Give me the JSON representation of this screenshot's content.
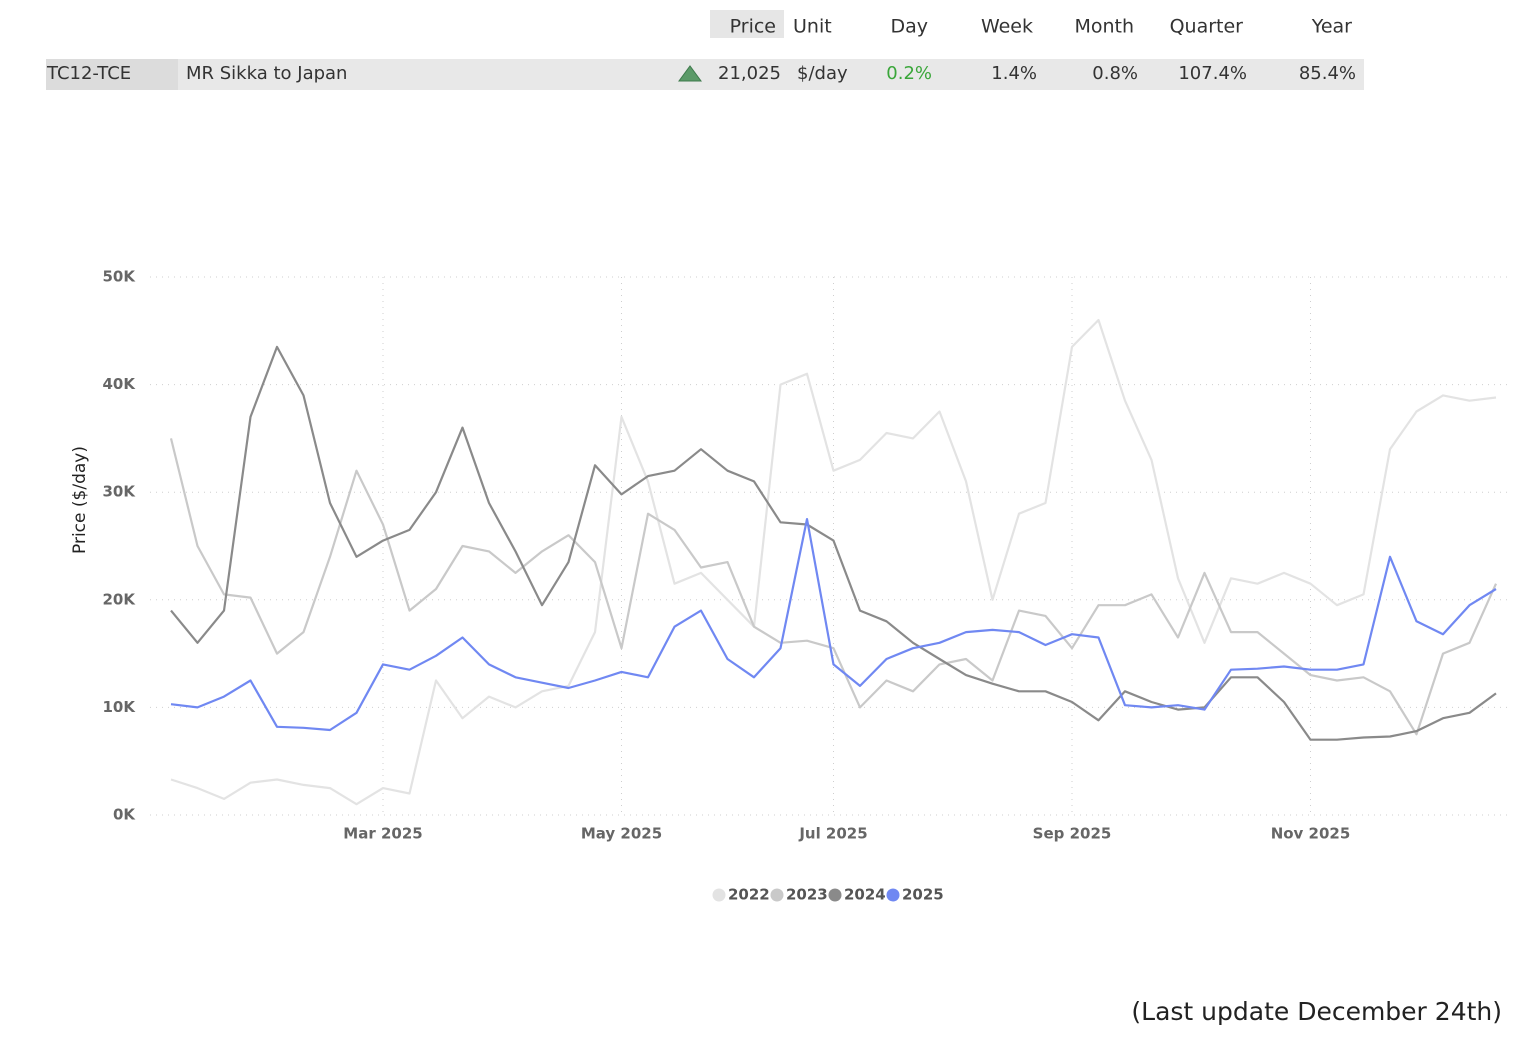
{
  "table": {
    "headers": [
      "Price",
      "Unit",
      "Day",
      "Week",
      "Month",
      "Quarter",
      "Year"
    ],
    "row": {
      "code": "TC12-TCE",
      "route": "MR Sikka to Japan",
      "price": "21,025",
      "unit": "$/day",
      "day": "0.2%",
      "week": "1.4%",
      "month": "0.8%",
      "quarter": "107.4%",
      "year": "85.4%"
    }
  },
  "chart_data": {
    "type": "line",
    "y_label": "Price ($/day)",
    "categories": [
      null,
      null,
      null,
      null,
      null,
      null,
      null,
      null,
      "Mar 2025",
      null,
      null,
      null,
      null,
      null,
      null,
      null,
      null,
      "May 2025",
      null,
      null,
      null,
      null,
      null,
      null,
      null,
      "Jul 2025",
      null,
      null,
      null,
      null,
      null,
      null,
      null,
      null,
      "Sep 2025",
      null,
      null,
      null,
      null,
      null,
      null,
      null,
      null,
      "Nov 2025",
      null,
      null,
      null,
      null,
      null,
      null,
      null
    ],
    "ylim": [
      0,
      50000
    ],
    "yticks": [
      {
        "value": 0,
        "label": "0K"
      },
      {
        "value": 10000,
        "label": "10K"
      },
      {
        "value": 20000,
        "label": "20K"
      },
      {
        "value": 30000,
        "label": "30K"
      },
      {
        "value": 40000,
        "label": "40K"
      },
      {
        "value": 50000,
        "label": "50K"
      }
    ],
    "grid": true,
    "legend": "bottom",
    "series": [
      {
        "name": "2022",
        "color": "#e3e3e3",
        "values": [
          3300,
          2500,
          1500,
          3000,
          3300,
          2800,
          2500,
          1000,
          2500,
          2000,
          12500,
          9000,
          11000,
          10000,
          11500,
          12000,
          17000,
          37000,
          31000,
          21500,
          22500,
          20000,
          17500,
          40000,
          41000,
          32000,
          33000,
          35500,
          35000,
          37500,
          31000,
          20000,
          28000,
          29000,
          43500,
          46000,
          38500,
          33000,
          22000,
          16000,
          22000,
          21500,
          22500,
          21500,
          19500,
          20500,
          34000,
          37500,
          39000,
          38500,
          38800
        ]
      },
      {
        "name": "2023",
        "color": "#c9c9c9",
        "values": [
          35000,
          25000,
          20500,
          20200,
          15000,
          17000,
          24000,
          32000,
          27000,
          19000,
          21000,
          25000,
          24500,
          22500,
          24500,
          26000,
          23500,
          15500,
          28000,
          26500,
          23000,
          23500,
          17500,
          16000,
          16200,
          15500,
          10000,
          12500,
          11500,
          14000,
          14500,
          12500,
          19000,
          18500,
          15500,
          19500,
          19500,
          20500,
          16500,
          22500,
          17000,
          17000,
          15000,
          13000,
          12500,
          12800,
          11500,
          7500,
          15000,
          16000,
          21500
        ]
      },
      {
        "name": "2024",
        "color": "#8a8a8a",
        "values": [
          19000,
          16000,
          19000,
          37000,
          43500,
          39000,
          29000,
          24000,
          25500,
          26500,
          30000,
          36000,
          29000,
          24500,
          19500,
          23500,
          32500,
          29800,
          31500,
          32000,
          34000,
          32000,
          31000,
          27200,
          27000,
          25500,
          19000,
          18000,
          16000,
          14500,
          13000,
          12200,
          11500,
          11500,
          10500,
          8800,
          11500,
          10500,
          9800,
          10000,
          12800,
          12800,
          10500,
          7000,
          7000,
          7200,
          7300,
          7800,
          9000,
          9500,
          11300
        ]
      },
      {
        "name": "2025",
        "color": "#7088f2",
        "values": [
          10300,
          10000,
          11000,
          12500,
          8200,
          8100,
          7900,
          9500,
          14000,
          13500,
          14800,
          16500,
          14000,
          12800,
          12300,
          11800,
          12500,
          13300,
          12800,
          17500,
          19000,
          14500,
          12800,
          15500,
          27500,
          14000,
          12000,
          14500,
          15500,
          16000,
          17000,
          17200,
          17000,
          15800,
          16800,
          16500,
          10200,
          10000,
          10200,
          9800,
          13500,
          13600,
          13800,
          13500,
          13500,
          14000,
          24000,
          18000,
          16800,
          19500,
          21000
        ]
      }
    ]
  },
  "footnote": "(Last update December 24th)"
}
